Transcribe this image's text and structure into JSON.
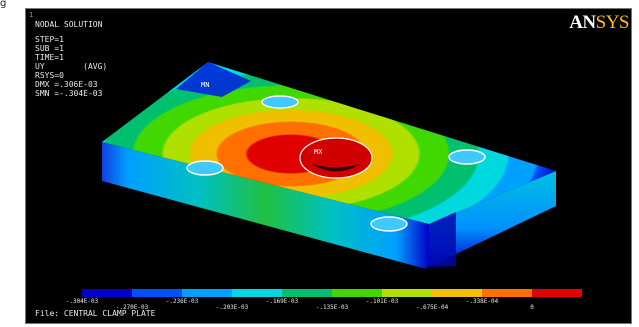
{
  "page": {
    "corner_glyph": "g"
  },
  "header": {
    "window_number": "1",
    "title": "NODAL SOLUTION",
    "step": "STEP=1",
    "sub": "SUB =1",
    "time": "TIME=1",
    "quantity": "UY        (AVG)",
    "rsys": "RSYS=0",
    "dmx": "DMX =.306E-03",
    "smn": "SMN =-.304E-03"
  },
  "brand": {
    "part1": "AN",
    "part2": "SYS"
  },
  "markers": {
    "min": "MN",
    "max": "MX"
  },
  "legend": {
    "colors": [
      "#0000c8",
      "#0050ff",
      "#00a0ff",
      "#00d8e0",
      "#00c070",
      "#40d800",
      "#b0e000",
      "#f0c000",
      "#ff7000",
      "#e00000"
    ],
    "labels_low": [
      "-.304E-03",
      "-.236E-03",
      "-.169E-03",
      "-.101E-03",
      "-.338E-04"
    ],
    "labels_high": [
      "-.270E-03",
      "-.203E-03",
      "-.135E-03",
      "-.675E-04",
      "0"
    ]
  },
  "footer": {
    "file": "File: CENTRAL CLAMP PLATE"
  }
}
